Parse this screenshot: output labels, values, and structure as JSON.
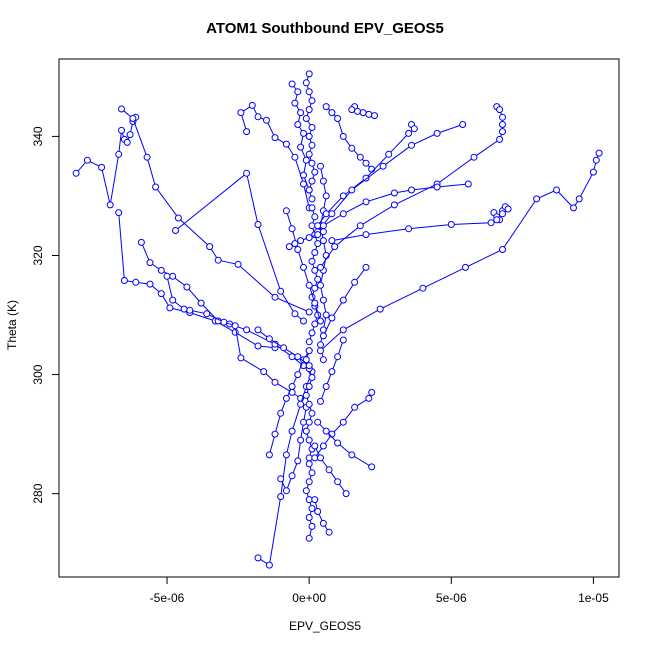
{
  "chart_data": {
    "type": "scatter",
    "title": "ATOM1 Southbound EPV_GEOS5",
    "xlabel": "EPV_GEOS5",
    "ylabel": "Theta (K)",
    "xlim": [
      -8.8e-06,
      1.09e-05
    ],
    "ylim": [
      266,
      353
    ],
    "x_ticks": [
      -5e-06,
      0,
      5e-06,
      1e-05
    ],
    "x_tick_labels": [
      "-5e-06",
      "0e+00",
      "5e-06",
      "1e-05"
    ],
    "y_ticks": [
      280,
      300,
      320,
      340
    ],
    "y_tick_labels": [
      "280",
      "300",
      "320",
      "340"
    ],
    "grid": false,
    "legend": "none",
    "color": "#0000ff",
    "marker": "open-circle",
    "connected": true,
    "series": [
      {
        "segments": [
          {
            "x": [
              -8.2e-06,
              -7.8e-06,
              -7.3e-06,
              -7e-06,
              -6.7e-06,
              -6.6e-06,
              -6.5e-06,
              -6.4e-06,
              -6.3e-06,
              -6.2e-06,
              -6.1e-06
            ],
            "y": [
              333.8,
              336.0,
              334.8,
              328.5,
              337.0,
              341.0,
              339.5,
              339.0,
              340.3,
              342.5,
              343.2
            ]
          },
          {
            "x": [
              -6.6e-06,
              -6.2e-06,
              -5.7e-06,
              -5.4e-06,
              -4.6e-06,
              -3.5e-06,
              -3.2e-06,
              -2.5e-06,
              -1.2e-06,
              0.0
            ],
            "y": [
              344.6,
              343.0,
              336.5,
              331.5,
              326.3,
              321.5,
              319.2,
              318.5,
              313.0,
              310.5
            ]
          },
          {
            "x": [
              -6.7e-06,
              -6.5e-06,
              -6.1e-06,
              -5.6e-06,
              -5.2e-06,
              -4.9e-06,
              -4.2e-06,
              -3.3e-06,
              -2.6e-06,
              -1.8e-06,
              -1.2e-06
            ],
            "y": [
              327.2,
              315.8,
              315.5,
              315.2,
              313.6,
              311.2,
              310.4,
              309.0,
              307.1,
              304.8,
              304.5
            ]
          },
          {
            "x": [
              -5.9e-06,
              -5.6e-06,
              -5.2e-06,
              -4.8e-06,
              -4.3e-06,
              -3.8e-06,
              -3.2e-06,
              -2.8e-06,
              -2.2e-06,
              -1.2e-06,
              -6e-07,
              -2e-07
            ],
            "y": [
              322.2,
              318.8,
              317.5,
              316.5,
              314.7,
              312.0,
              309.0,
              308.5,
              307.5,
              305.1,
              303.0,
              301.5
            ]
          },
          {
            "x": [
              -5e-06,
              -4.8e-06,
              -4.4e-06,
              -4.2e-06,
              -3.6e-06,
              -3e-06,
              -2.6e-06,
              -2.4e-06,
              -1.6e-06,
              -1.2e-06,
              -6e-07,
              -3e-07
            ],
            "y": [
              316.5,
              312.5,
              311.0,
              310.8,
              310.2,
              308.8,
              308.2,
              302.8,
              300.5,
              298.7,
              297.0,
              296.0
            ]
          },
          {
            "x": [
              -4.7e-06,
              -2.2e-06,
              -1.8e-06,
              -1e-06,
              -5e-07,
              -2e-07
            ],
            "y": [
              324.2,
              333.8,
              325.2,
              314.0,
              310.2,
              309.0
            ]
          },
          {
            "x": [
              -2.2e-06,
              -2.4e-06,
              -2e-06,
              -1.8e-06,
              -1.5e-06,
              -1.2e-06,
              -8e-07,
              -5e-07,
              -2e-07,
              0.0
            ],
            "y": [
              340.8,
              344.0,
              345.2,
              343.3,
              342.7,
              339.8,
              338.7,
              336.5,
              332.0,
              328.0
            ]
          },
          {
            "x": [
              -1.8e-06,
              -1.4e-06,
              -1e-06,
              -8e-07,
              -6e-07,
              -3e-07,
              -1e-07,
              1e-07
            ],
            "y": [
              269.2,
              268.0,
              279.5,
              286.5,
              290.5,
              295.0,
              298.0,
              300.5
            ]
          },
          {
            "x": [
              -1.4e-06,
              -1.2e-06,
              -1e-06,
              -8e-07,
              -6e-07,
              -4e-07,
              -2e-07,
              0.0
            ],
            "y": [
              286.5,
              290.0,
              293.5,
              296.0,
              298.0,
              300.0,
              302.5,
              304.0
            ]
          },
          {
            "x": [
              -1e-06,
              -8e-07,
              -6e-07,
              -4e-07,
              -3e-07,
              -2e-07,
              -1e-07
            ],
            "y": [
              282.5,
              280.5,
              283.0,
              285.5,
              289.0,
              292.0,
              294.5
            ]
          },
          {
            "x": [
              0.0,
              -1e-07,
              0.0,
              1e-07,
              0.0,
              -1e-07,
              1e-07,
              0.0,
              1e-07,
              0.0,
              1e-07,
              2e-07,
              1e-07,
              0.0,
              1e-07
            ],
            "y": [
              350.5,
              349.0,
              347.5,
              346.0,
              344.5,
              343.0,
              341.5,
              340.0,
              338.5,
              337.0,
              335.5,
              334.0,
              332.5,
              331.0,
              329.5
            ]
          },
          {
            "x": [
              1e-07,
              2e-07,
              1e-07,
              2e-07,
              3e-07,
              2e-07,
              1e-07,
              2e-07,
              3e-07,
              2e-07,
              1e-07,
              2e-07,
              3e-07,
              2e-07,
              1e-07,
              0.0
            ],
            "y": [
              328.0,
              326.5,
              325.0,
              323.5,
              322.0,
              320.5,
              319.0,
              317.5,
              316.0,
              314.5,
              313.0,
              311.5,
              310.0,
              308.5,
              307.0,
              305.5
            ]
          },
          {
            "x": [
              0.0,
              -1e-07,
              0.0,
              1e-07,
              0.0,
              -1e-07,
              0.0,
              1e-07,
              0.0,
              -1e-07,
              0.0,
              1e-07,
              0.0
            ],
            "y": [
              304.0,
              302.5,
              301.0,
              299.5,
              298.0,
              296.5,
              295.0,
              293.5,
              292.0,
              290.5,
              289.0,
              287.5,
              286.0
            ]
          },
          {
            "x": [
              0.0,
              1e-07,
              0.0,
              -1e-07,
              0.0,
              1e-07,
              0.0,
              1e-07,
              0.0
            ],
            "y": [
              285.0,
              283.5,
              282.0,
              280.5,
              279.0,
              277.5,
              276.0,
              274.5,
              272.5
            ]
          },
          {
            "x": [
              -6e-07,
              -4e-07,
              -5e-07,
              -3e-07,
              -4e-07,
              -2e-07,
              -3e-07,
              -1e-07,
              -2e-07,
              0.0
            ],
            "y": [
              348.8,
              347.5,
              345.6,
              344.0,
              342.0,
              340.5,
              338.2,
              336.0,
              333.5,
              331.0
            ]
          },
          {
            "x": [
              -8e-07,
              -6e-07,
              -4e-07,
              -2e-07,
              0.0,
              2e-07,
              4e-07
            ],
            "y": [
              327.5,
              324.5,
              321.0,
              318.0,
              315.0,
              312.0,
              309.0
            ]
          },
          {
            "x": [
              4e-07,
              5e-07,
              6e-07,
              5e-07,
              4e-07,
              5e-07,
              6e-07,
              5e-07,
              4e-07,
              5e-07,
              6e-07,
              5e-07,
              4e-07,
              5e-07
            ],
            "y": [
              335.0,
              332.5,
              330.0,
              327.5,
              325.0,
              322.5,
              320.0,
              317.5,
              315.0,
              312.5,
              310.0,
              307.5,
              305.0,
              302.5
            ]
          },
          {
            "x": [
              6e-07,
              8e-07,
              1e-06,
              1.2e-06,
              1.5e-06,
              1.8e-06,
              2e-06,
              2.2e-06
            ],
            "y": [
              345.0,
              344.0,
              343.0,
              340.0,
              338.0,
              336.5,
              335.5,
              334.5
            ]
          },
          {
            "x": [
              1.6e-06,
              1.5e-06,
              1.7e-06,
              1.9e-06,
              2.1e-06,
              2.3e-06
            ],
            "y": [
              345.0,
              344.5,
              344.2,
              344.0,
              343.7,
              343.5
            ]
          },
          {
            "x": [
              3.6e-06,
              3.7e-06,
              3.5e-06,
              2.8e-06,
              2e-06,
              1.2e-06,
              6e-07,
              3e-07
            ],
            "y": [
              342.0,
              341.3,
              340.5,
              337.0,
              333.0,
              330.0,
              327.0,
              325.0
            ]
          },
          {
            "x": [
              5.4e-06,
              4.5e-06,
              3.6e-06,
              2.6e-06,
              1.5e-06,
              8e-07,
              3e-07
            ],
            "y": [
              342.0,
              340.5,
              338.5,
              335.0,
              331.0,
              327.0,
              324.0
            ]
          },
          {
            "x": [
              6.6e-06,
              6.7e-06,
              6.8e-06,
              6.8e-06,
              6.8e-06,
              6.7e-06,
              5.8e-06,
              4.5e-06,
              3e-06,
              1.8e-06,
              9e-07,
              4e-07
            ],
            "y": [
              345.0,
              344.5,
              343.2,
              342.0,
              340.8,
              339.5,
              336.5,
              332.0,
              328.5,
              325.0,
              321.5,
              318.0
            ]
          },
          {
            "x": [
              5.6e-06,
              4.5e-06,
              3.6e-06,
              3e-06,
              2e-06,
              1.2e-06,
              5e-07
            ],
            "y": [
              332.0,
              331.5,
              331.0,
              330.5,
              329.0,
              327.0,
              325.0
            ]
          },
          {
            "x": [
              6.5e-06,
              6.6e-06,
              6.7e-06,
              6.8e-06,
              6.9e-06,
              7e-06,
              6.8e-06,
              6.6e-06,
              6.4e-06,
              5e-06,
              3.5e-06,
              2e-06,
              8e-07
            ],
            "y": [
              327.2,
              326.5,
              326.0,
              327.5,
              328.2,
              327.8,
              327.0,
              326.0,
              325.5,
              325.2,
              324.5,
              323.5,
              322.5
            ]
          },
          {
            "x": [
              1.02e-05,
              1.01e-05,
              1e-05,
              9.5e-06,
              9.3e-06,
              8.7e-06,
              8e-06,
              6.8e-06,
              5.5e-06,
              4e-06,
              2.5e-06,
              1.2e-06,
              4e-07
            ],
            "y": [
              337.2,
              336.0,
              334.0,
              329.5,
              328.0,
              331.0,
              329.5,
              321.0,
              318.0,
              314.5,
              311.0,
              307.5,
              304.0
            ]
          },
          {
            "x": [
              2e-06,
              1.6e-06,
              1.2e-06,
              8e-07,
              5e-07
            ],
            "y": [
              318.0,
              315.5,
              312.5,
              309.5,
              306.5
            ]
          },
          {
            "x": [
              1.2e-06,
              1e-06,
              8e-07,
              6e-07,
              4e-07
            ],
            "y": [
              305.8,
              303.0,
              300.5,
              298.0,
              295.5
            ]
          },
          {
            "x": [
              2.2e-06,
              2.1e-06,
              1.6e-06,
              1.2e-06,
              8e-07,
              5e-07,
              2e-07
            ],
            "y": [
              297.0,
              296.0,
              294.5,
              292.0,
              290.0,
              288.0,
              286.0
            ]
          },
          {
            "x": [
              2.2e-06,
              1.5e-06,
              1e-06,
              6e-07,
              3e-07
            ],
            "y": [
              284.5,
              286.5,
              288.5,
              290.5,
              292.0
            ]
          },
          {
            "x": [
              1.3e-06,
              1e-06,
              7e-07,
              4e-07,
              2e-07
            ],
            "y": [
              280.0,
              282.0,
              284.0,
              286.0,
              288.0
            ]
          },
          {
            "x": [
              7e-07,
              5e-07,
              3e-07,
              2e-07
            ],
            "y": [
              273.5,
              275.0,
              277.0,
              279.0
            ]
          },
          {
            "x": [
              -7e-07,
              -5e-07,
              -3e-07,
              0.0,
              3e-07,
              5e-07
            ],
            "y": [
              321.5,
              322.0,
              322.5,
              323.0,
              323.5,
              324.0
            ]
          },
          {
            "x": [
              -1.8e-06,
              -1.4e-06,
              -9e-07,
              -4e-07,
              0.0
            ],
            "y": [
              307.5,
              306.0,
              304.5,
              303.0,
              301.5
            ]
          }
        ]
      }
    ]
  }
}
